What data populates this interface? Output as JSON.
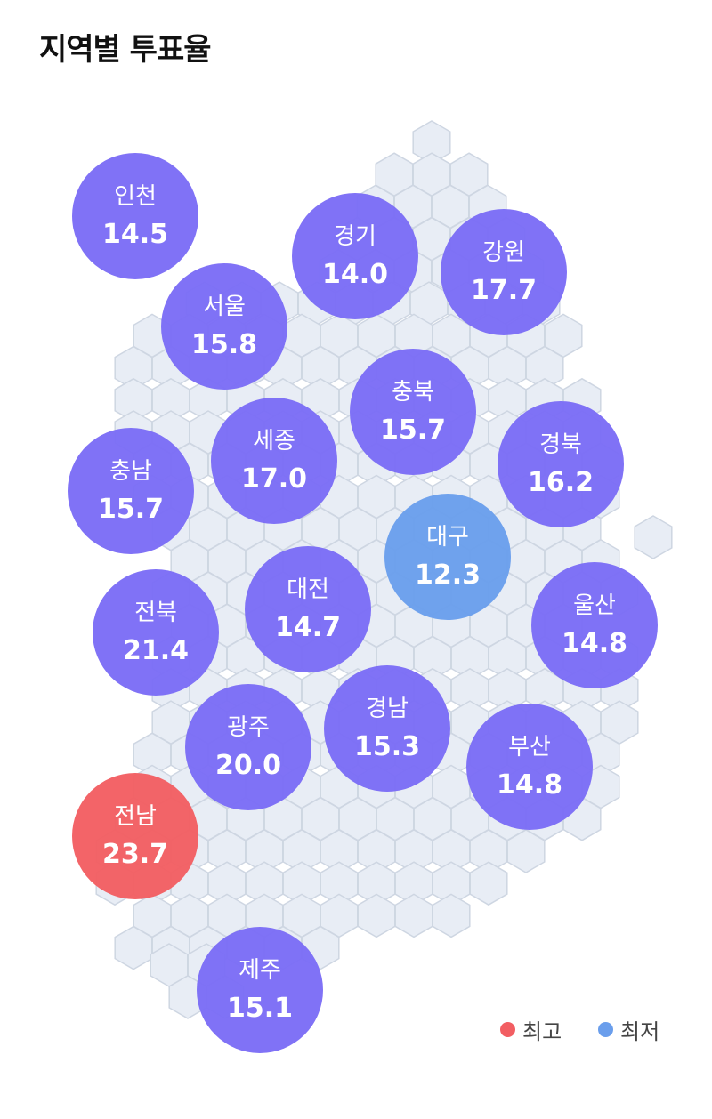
{
  "title": "지역별 투표율",
  "colors": {
    "normal": "#7B6CF6",
    "max": "#F25E62",
    "min": "#6A9EEC",
    "hex_fill": "#E8EDF5",
    "hex_stroke": "#CED6E2"
  },
  "legend": {
    "max_label": "최고",
    "min_label": "최저"
  },
  "chart_data": {
    "type": "bubble-map",
    "unit": "%",
    "regions": [
      {
        "name": "인천",
        "value": 14.5,
        "status": "normal"
      },
      {
        "name": "경기",
        "value": 14.0,
        "status": "normal"
      },
      {
        "name": "강원",
        "value": 17.7,
        "status": "normal"
      },
      {
        "name": "서울",
        "value": 15.8,
        "status": "normal"
      },
      {
        "name": "충북",
        "value": 15.7,
        "status": "normal"
      },
      {
        "name": "세종",
        "value": 17.0,
        "status": "normal"
      },
      {
        "name": "경북",
        "value": 16.2,
        "status": "normal"
      },
      {
        "name": "충남",
        "value": 15.7,
        "status": "normal"
      },
      {
        "name": "대구",
        "value": 12.3,
        "status": "min"
      },
      {
        "name": "대전",
        "value": 14.7,
        "status": "normal"
      },
      {
        "name": "울산",
        "value": 14.8,
        "status": "normal"
      },
      {
        "name": "전북",
        "value": 21.4,
        "status": "normal"
      },
      {
        "name": "경남",
        "value": 15.3,
        "status": "normal"
      },
      {
        "name": "광주",
        "value": 20.0,
        "status": "normal"
      },
      {
        "name": "부산",
        "value": 14.8,
        "status": "normal"
      },
      {
        "name": "전남",
        "value": 23.7,
        "status": "max"
      },
      {
        "name": "제주",
        "value": 15.1,
        "status": "normal"
      }
    ]
  }
}
